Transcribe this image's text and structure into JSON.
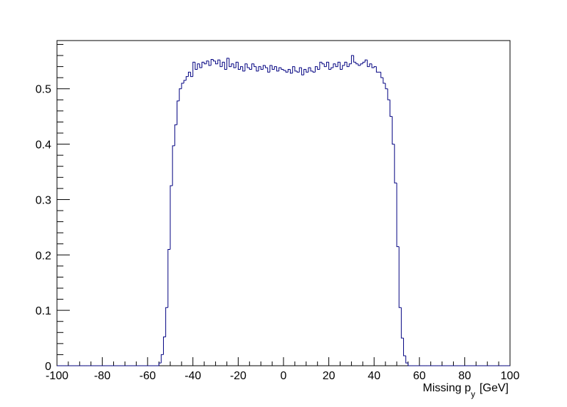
{
  "chart_data": {
    "type": "histogram",
    "xlabel": {
      "main": "Missing p",
      "sub": "y",
      "unit": "[GeV]"
    },
    "color": "#000080",
    "xlim": [
      -100,
      100
    ],
    "ylim": [
      0,
      0.587
    ],
    "xticks": [
      -100,
      -80,
      -60,
      -40,
      -20,
      0,
      20,
      40,
      60,
      80,
      100
    ],
    "yticks": [
      0,
      0.1,
      0.2,
      0.3,
      0.4,
      0.5
    ],
    "bins": [
      -100,
      -99,
      -98,
      -97,
      -96,
      -95,
      -94,
      -93,
      -92,
      -91,
      -90,
      -89,
      -88,
      -87,
      -86,
      -85,
      -84,
      -83,
      -82,
      -81,
      -80,
      -79,
      -78,
      -77,
      -76,
      -75,
      -74,
      -73,
      -72,
      -71,
      -70,
      -69,
      -68,
      -67,
      -66,
      -65,
      -64,
      -63,
      -62,
      -61,
      -60,
      -59,
      -58,
      -57,
      -56,
      -55,
      -54,
      -53,
      -52,
      -51,
      -50,
      -49,
      -48,
      -47,
      -46,
      -45,
      -44,
      -43,
      -42,
      -41,
      -40,
      -39,
      -38,
      -37,
      -36,
      -35,
      -34,
      -33,
      -32,
      -31,
      -30,
      -29,
      -28,
      -27,
      -26,
      -25,
      -24,
      -23,
      -22,
      -21,
      -20,
      -19,
      -18,
      -17,
      -16,
      -15,
      -14,
      -13,
      -12,
      -11,
      -10,
      -9,
      -8,
      -7,
      -6,
      -5,
      -4,
      -3,
      -2,
      -1,
      0,
      1,
      2,
      3,
      4,
      5,
      6,
      7,
      8,
      9,
      10,
      11,
      12,
      13,
      14,
      15,
      16,
      17,
      18,
      19,
      20,
      21,
      22,
      23,
      24,
      25,
      26,
      27,
      28,
      29,
      30,
      31,
      32,
      33,
      34,
      35,
      36,
      37,
      38,
      39,
      40,
      41,
      42,
      43,
      44,
      45,
      46,
      47,
      48,
      49,
      50,
      51,
      52,
      53,
      54,
      55,
      56,
      57,
      58,
      59,
      60,
      61,
      62,
      63,
      64,
      65,
      66,
      67,
      68,
      69,
      70,
      71,
      72,
      73,
      74,
      75,
      76,
      77,
      78,
      79,
      80,
      81,
      82,
      83,
      84,
      85,
      86,
      87,
      88,
      89,
      90,
      91,
      92,
      93,
      94,
      95,
      96,
      97,
      98,
      99,
      100
    ],
    "values": [
      0,
      0,
      0,
      0,
      0,
      0,
      0,
      0,
      0,
      0,
      0,
      0,
      0,
      0,
      0,
      0,
      0,
      0,
      0,
      0,
      0,
      0,
      0,
      0,
      0,
      0,
      0,
      0,
      0,
      0,
      0,
      0,
      0,
      0,
      0,
      0,
      0,
      0,
      0,
      0,
      0,
      0,
      0,
      0,
      0,
      0.005,
      0.02,
      0.052,
      0.105,
      0.21,
      0.325,
      0.397,
      0.435,
      0.478,
      0.5,
      0.51,
      0.515,
      0.522,
      0.53,
      0.522,
      0.548,
      0.535,
      0.545,
      0.538,
      0.548,
      0.545,
      0.55,
      0.542,
      0.553,
      0.55,
      0.545,
      0.552,
      0.54,
      0.548,
      0.535,
      0.555,
      0.54,
      0.545,
      0.538,
      0.548,
      0.535,
      0.54,
      0.532,
      0.545,
      0.538,
      0.535,
      0.545,
      0.54,
      0.532,
      0.54,
      0.535,
      0.542,
      0.538,
      0.53,
      0.542,
      0.535,
      0.54,
      0.532,
      0.538,
      0.535,
      0.533,
      0.53,
      0.535,
      0.528,
      0.54,
      0.532,
      0.53,
      0.538,
      0.525,
      0.535,
      0.53,
      0.538,
      0.532,
      0.53,
      0.54,
      0.535,
      0.548,
      0.545,
      0.54,
      0.548,
      0.535,
      0.538,
      0.545,
      0.54,
      0.548,
      0.535,
      0.542,
      0.548,
      0.54,
      0.545,
      0.56,
      0.548,
      0.545,
      0.542,
      0.545,
      0.548,
      0.552,
      0.54,
      0.545,
      0.538,
      0.54,
      0.53,
      0.53,
      0.52,
      0.51,
      0.5,
      0.48,
      0.45,
      0.4,
      0.33,
      0.215,
      0.105,
      0.05,
      0.018,
      0.005,
      0,
      0,
      0,
      0,
      0,
      0,
      0,
      0,
      0,
      0,
      0,
      0,
      0,
      0,
      0,
      0,
      0,
      0,
      0,
      0,
      0,
      0,
      0,
      0,
      0,
      0,
      0,
      0,
      0,
      0,
      0,
      0,
      0,
      0,
      0,
      0,
      0,
      0,
      0,
      0,
      0,
      0,
      0,
      0,
      0
    ]
  }
}
